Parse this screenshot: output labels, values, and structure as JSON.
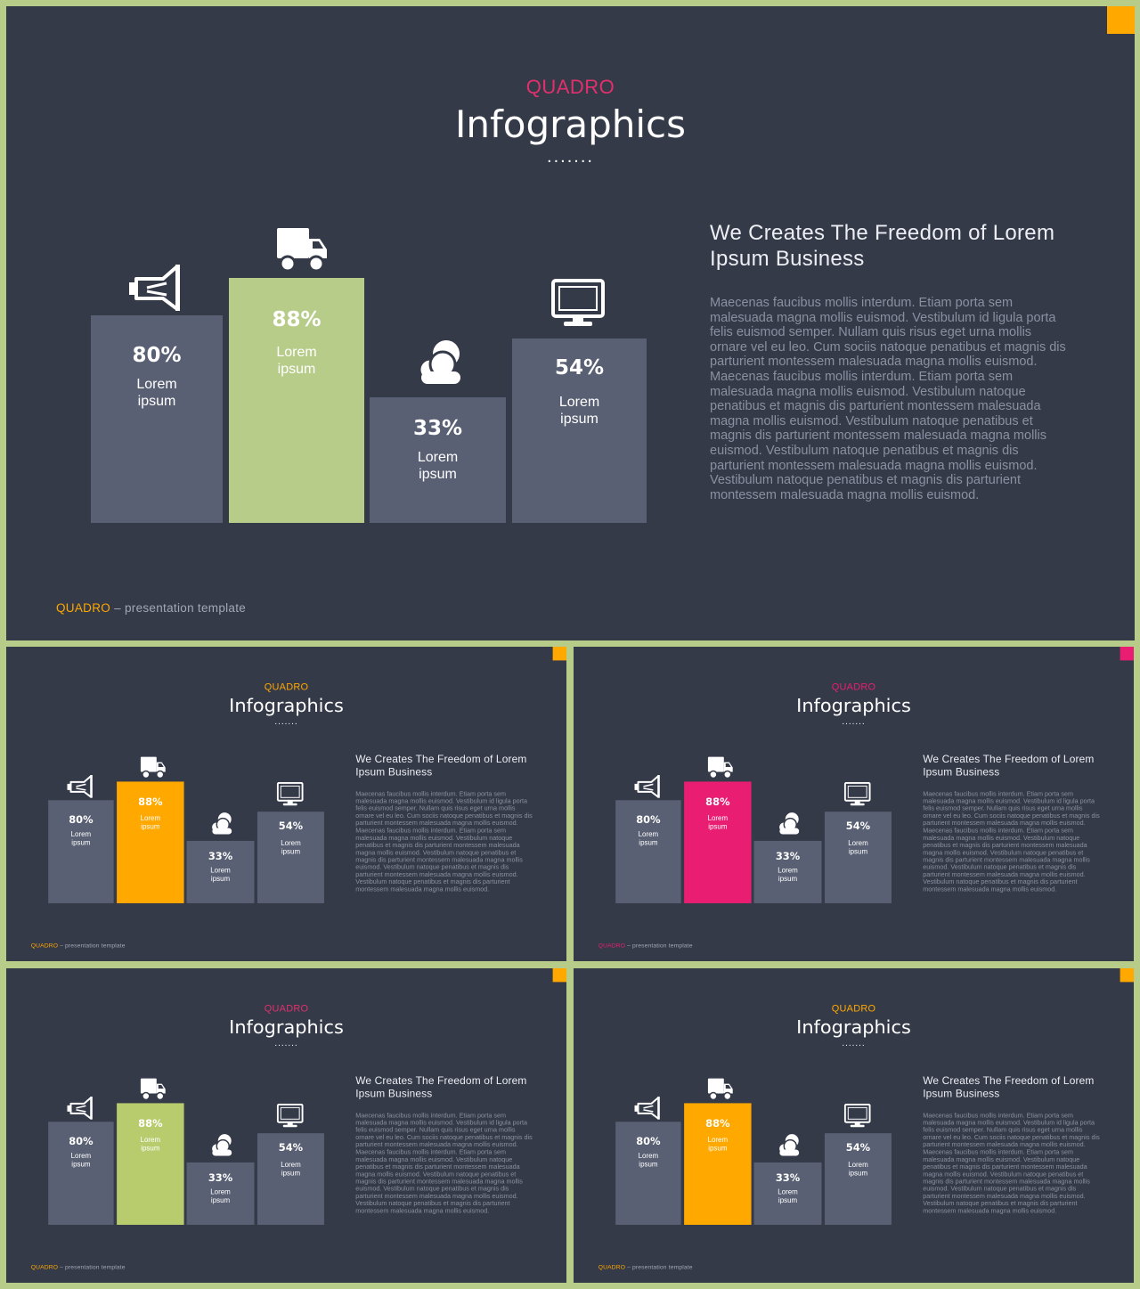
{
  "slides": [
    {
      "brand": "QUADRO",
      "title": "Infographics",
      "dots": ".......",
      "accent_color": "#b8cc8a",
      "brand_color": "#e1306c",
      "corner_color": "#ffa800",
      "footer_brand_color": "#ffa800",
      "heading": "We Creates The Freedom of Lorem Ipsum Business",
      "body": "Maecenas faucibus mollis interdum. Etiam porta sem malesuada magna mollis euismod. Vestibulum id ligula porta felis euismod semper. Nullam quis risus eget urna mollis ornare vel eu leo. Cum sociis natoque penatibus et magnis dis parturient montessem malesuada magna mollis euismod. Maecenas faucibus mollis interdum. Etiam porta sem malesuada magna mollis euismod. Vestibulum natoque penatibus et magnis dis parturient montessem malesuada magna mollis euismod. Vestibulum natoque penatibus et magnis dis parturient montessem malesuada magna mollis euismod. Vestibulum natoque penatibus et magnis dis parturient montessem malesuada magna mollis euismod. Vestibulum natoque penatibus et magnis dis parturient montessem malesuada magna mollis euismod.",
      "footer_brand": "QUADRO",
      "footer_text": " – presentation template",
      "bars": [
        {
          "value": "80%",
          "label": "Lorem\nipsum",
          "icon": "megaphone-icon"
        },
        {
          "value": "88%",
          "label": "Lorem\nipsum",
          "icon": "truck-icon"
        },
        {
          "value": "33%",
          "label": "Lorem\nipsum",
          "icon": "clouds-icon"
        },
        {
          "value": "54%",
          "label": "Lorem\nipsum",
          "icon": "monitor-icon"
        }
      ]
    },
    {
      "brand": "QUADRO",
      "title": "Infographics",
      "dots": ".......",
      "accent_color": "#ffa800",
      "brand_color": "#ffa800",
      "corner_color": "#ffa800",
      "footer_brand_color": "#ffa800",
      "heading": "We Creates The Freedom of Lorem Ipsum Business",
      "body": "Maecenas faucibus mollis interdum. Etiam porta sem malesuada magna mollis euismod. Vestibulum id ligula porta felis euismod semper. Nullam quis risus eget urna mollis ornare vel eu leo. Cum sociis natoque penatibus et magnis dis parturient montessem malesuada magna mollis euismod. Maecenas faucibus mollis interdum. Etiam porta sem malesuada magna mollis euismod. Vestibulum natoque penatibus et magnis dis parturient montessem malesuada magna mollis euismod. Vestibulum natoque penatibus et magnis dis parturient montessem malesuada magna mollis euismod. Vestibulum natoque penatibus et magnis dis parturient montessem malesuada magna mollis euismod. Vestibulum natoque penatibus et magnis dis parturient montessem malesuada magna mollis euismod.",
      "footer_brand": "QUADRO",
      "footer_text": " – presentation template",
      "bars": [
        {
          "value": "80%",
          "label": "Lorem\nipsum",
          "icon": "megaphone-icon"
        },
        {
          "value": "88%",
          "label": "Lorem\nipsum",
          "icon": "truck-icon"
        },
        {
          "value": "33%",
          "label": "Lorem\nipsum",
          "icon": "clouds-icon"
        },
        {
          "value": "54%",
          "label": "Lorem\nipsum",
          "icon": "monitor-icon"
        }
      ]
    },
    {
      "brand": "QUADRO",
      "title": "Infographics",
      "dots": ".......",
      "accent_color": "#e91e73",
      "brand_color": "#e91e73",
      "corner_color": "#e91e73",
      "footer_brand_color": "#e91e73",
      "heading": "We Creates The Freedom of Lorem Ipsum Business",
      "body": "Maecenas faucibus mollis interdum. Etiam porta sem malesuada magna mollis euismod. Vestibulum id ligula porta felis euismod semper. Nullam quis risus eget urna mollis ornare vel eu leo. Cum sociis natoque penatibus et magnis dis parturient montessem malesuada magna mollis euismod. Maecenas faucibus mollis interdum. Etiam porta sem malesuada magna mollis euismod. Vestibulum natoque penatibus et magnis dis parturient montessem malesuada magna mollis euismod. Vestibulum natoque penatibus et magnis dis parturient montessem malesuada magna mollis euismod. Vestibulum natoque penatibus et magnis dis parturient montessem malesuada magna mollis euismod. Vestibulum natoque penatibus et magnis dis parturient montessem malesuada magna mollis euismod.",
      "footer_brand": "QUADRO",
      "footer_text": " – presentation template",
      "bars": [
        {
          "value": "80%",
          "label": "Lorem\nipsum",
          "icon": "megaphone-icon"
        },
        {
          "value": "88%",
          "label": "Lorem\nipsum",
          "icon": "truck-icon"
        },
        {
          "value": "33%",
          "label": "Lorem\nipsum",
          "icon": "clouds-icon"
        },
        {
          "value": "54%",
          "label": "Lorem\nipsum",
          "icon": "monitor-icon"
        }
      ]
    },
    {
      "brand": "QUADRO",
      "title": "Infographics",
      "dots": ".......",
      "accent_color": "#b8cc6e",
      "brand_color": "#e1306c",
      "corner_color": "#ffa800",
      "footer_brand_color": "#ffa800",
      "heading": "We Creates The Freedom of Lorem Ipsum Business",
      "body": "Maecenas faucibus mollis interdum. Etiam porta sem malesuada magna mollis euismod. Vestibulum id ligula porta felis euismod semper. Nullam quis risus eget urna mollis ornare vel eu leo. Cum sociis natoque penatibus et magnis dis parturient montessem malesuada magna mollis euismod. Maecenas faucibus mollis interdum. Etiam porta sem malesuada magna mollis euismod. Vestibulum natoque penatibus et magnis dis parturient montessem malesuada magna mollis euismod. Vestibulum natoque penatibus et magnis dis parturient montessem malesuada magna mollis euismod. Vestibulum natoque penatibus et magnis dis parturient montessem malesuada magna mollis euismod. Vestibulum natoque penatibus et magnis dis parturient montessem malesuada magna mollis euismod.",
      "footer_brand": "QUADRO",
      "footer_text": " – presentation template",
      "bars": [
        {
          "value": "80%",
          "label": "Lorem\nipsum",
          "icon": "megaphone-icon"
        },
        {
          "value": "88%",
          "label": "Lorem\nipsum",
          "icon": "truck-icon"
        },
        {
          "value": "33%",
          "label": "Lorem\nipsum",
          "icon": "clouds-icon"
        },
        {
          "value": "54%",
          "label": "Lorem\nipsum",
          "icon": "monitor-icon"
        }
      ]
    },
    {
      "brand": "QUADRO",
      "title": "Infographics",
      "dots": ".......",
      "accent_color": "#ffa800",
      "brand_color": "#ffa800",
      "corner_color": "#ffa800",
      "footer_brand_color": "#ffa800",
      "heading": "We Creates The Freedom of Lorem Ipsum Business",
      "body": "Maecenas faucibus mollis interdum. Etiam porta sem malesuada magna mollis euismod. Vestibulum id ligula porta felis euismod semper. Nullam quis risus eget urna mollis ornare vel eu leo. Cum sociis natoque penatibus et magnis dis parturient montessem malesuada magna mollis euismod. Maecenas faucibus mollis interdum. Etiam porta sem malesuada magna mollis euismod. Vestibulum natoque penatibus et magnis dis parturient montessem malesuada magna mollis euismod. Vestibulum natoque penatibus et magnis dis parturient montessem malesuada magna mollis euismod. Vestibulum natoque penatibus et magnis dis parturient montessem malesuada magna mollis euismod. Vestibulum natoque penatibus et magnis dis parturient montessem malesuada magna mollis euismod.",
      "footer_brand": "QUADRO",
      "footer_text": " – presentation template",
      "bars": [
        {
          "value": "80%",
          "label": "Lorem\nipsum",
          "icon": "megaphone-icon"
        },
        {
          "value": "88%",
          "label": "Lorem\nipsum",
          "icon": "truck-icon"
        },
        {
          "value": "33%",
          "label": "Lorem\nipsum",
          "icon": "clouds-icon"
        },
        {
          "value": "54%",
          "label": "Lorem\nipsum",
          "icon": "monitor-icon"
        }
      ]
    }
  ]
}
